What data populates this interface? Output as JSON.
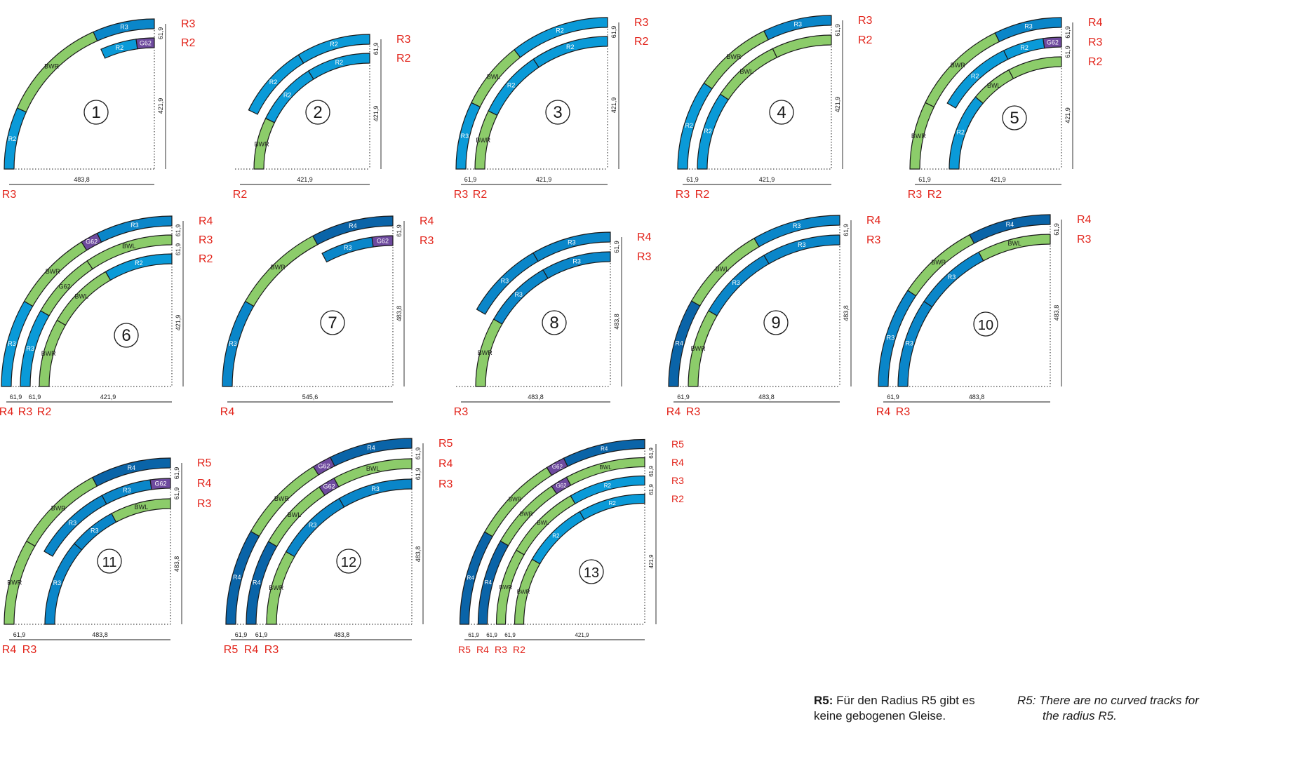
{
  "colors": {
    "R2": "#0a9ad8",
    "R3": "#0a86c9",
    "R4": "#0a64a8",
    "switch": "#8ccc6a",
    "G62": "#6e4a9e",
    "radius_label": "#e2231a",
    "outline": "#1a1a1a"
  },
  "diagrams": [
    {
      "num": "1",
      "radii": [
        "R3",
        "R2"
      ],
      "pieces": [
        {
          "lane": 0,
          "t0": 0,
          "t1": 24,
          "type": "R2",
          "label": "R2"
        },
        {
          "lane": 0,
          "t0": 24,
          "t1": 66,
          "type": "BW",
          "label": "BWR"
        },
        {
          "lane": 0,
          "t0": 66,
          "t1": 90,
          "type": "R3",
          "label": "R3"
        },
        {
          "lane": 1,
          "t0": 66,
          "t1": 82,
          "type": "R2",
          "label": "R2"
        },
        {
          "lane": 1,
          "t0": 82,
          "t1": 90,
          "type": "G62",
          "label": "G62"
        }
      ],
      "gaps": [],
      "gap_labels": [
        "61,9"
      ],
      "width_label": "483,8",
      "height_label": "421,9",
      "bottom_labels": [
        "R3"
      ]
    },
    {
      "num": "2",
      "radii": [
        "R3",
        "R2"
      ],
      "pieces": [
        {
          "lane": 1,
          "t0": 0,
          "t1": 26,
          "type": "BW",
          "label": "BWR"
        },
        {
          "lane": 0,
          "t0": 26,
          "t1": 58,
          "type": "R2",
          "label": "R2"
        },
        {
          "lane": 0,
          "t0": 58,
          "t1": 90,
          "type": "R2",
          "label": "R2"
        },
        {
          "lane": 1,
          "t0": 26,
          "t1": 58,
          "type": "R2",
          "label": "R2"
        },
        {
          "lane": 1,
          "t0": 58,
          "t1": 90,
          "type": "R2",
          "label": "R2"
        }
      ],
      "gaps": [],
      "gap_labels": [
        "61,9"
      ],
      "width_label": "421,9",
      "height_label": "421,9",
      "bottom_labels": [
        "R2"
      ]
    },
    {
      "num": "3",
      "radii": [
        "R3",
        "R2"
      ],
      "pieces": [
        {
          "lane": 0,
          "t0": 0,
          "t1": 26,
          "type": "R2",
          "label": "R3"
        },
        {
          "lane": 1,
          "t0": 0,
          "t1": 26,
          "type": "BW",
          "label": "BWR"
        },
        {
          "lane": 0,
          "t0": 26,
          "t1": 52,
          "type": "BW",
          "label": "BWL"
        },
        {
          "lane": 1,
          "t0": 26,
          "t1": 56,
          "type": "R2",
          "label": "R2"
        },
        {
          "lane": 0,
          "t0": 52,
          "t1": 90,
          "type": "R2",
          "label": "R2"
        },
        {
          "lane": 1,
          "t0": 56,
          "t1": 90,
          "type": "R2",
          "label": "R2"
        }
      ],
      "gaps": [
        "61,9"
      ],
      "gap_labels": [
        "61,9"
      ],
      "width_label": "421,9",
      "height_label": "421,9",
      "bottom_labels": [
        "R3",
        "R2"
      ]
    },
    {
      "num": "4",
      "radii": [
        "R3",
        "R2"
      ],
      "pieces": [
        {
          "lane": 0,
          "t0": 0,
          "t1": 34,
          "type": "R2",
          "label": "R2"
        },
        {
          "lane": 1,
          "t0": 0,
          "t1": 34,
          "type": "R2",
          "label": "R2"
        },
        {
          "lane": 0,
          "t0": 34,
          "t1": 64,
          "type": "BW",
          "label": "BWR"
        },
        {
          "lane": 1,
          "t0": 34,
          "t1": 64,
          "type": "BW",
          "label": "BWL"
        },
        {
          "lane": 0,
          "t0": 64,
          "t1": 90,
          "type": "R3",
          "label": "R3"
        },
        {
          "lane": 1,
          "t0": 64,
          "t1": 90,
          "type": "BW",
          "label": ""
        }
      ],
      "gaps": [
        "61,9"
      ],
      "gap_labels": [
        "61,9"
      ],
      "width_label": "421,9",
      "height_label": "421,9",
      "bottom_labels": [
        "R3",
        "R2"
      ]
    },
    {
      "num": "5",
      "radii": [
        "R4",
        "R3",
        "R2"
      ],
      "pieces": [
        {
          "lane": 0,
          "t0": 0,
          "t1": 26,
          "type": "BW",
          "label": "BWR"
        },
        {
          "lane": 0,
          "t0": 26,
          "t1": 64,
          "type": "BW",
          "label": "BWR"
        },
        {
          "lane": 0,
          "t0": 64,
          "t1": 90,
          "type": "R3",
          "label": "R3"
        },
        {
          "lane": 1,
          "t0": 30,
          "t1": 64,
          "type": "R2",
          "label": "R2"
        },
        {
          "lane": 1,
          "t0": 64,
          "t1": 82,
          "type": "R2",
          "label": "R2"
        },
        {
          "lane": 1,
          "t0": 82,
          "t1": 90,
          "type": "G62",
          "label": "G62"
        },
        {
          "lane": 2,
          "t0": 0,
          "t1": 40,
          "type": "R2",
          "label": "R2"
        },
        {
          "lane": 2,
          "t0": 40,
          "t1": 62,
          "type": "BW",
          "label": "BWL"
        },
        {
          "lane": 2,
          "t0": 62,
          "t1": 90,
          "type": "BW",
          "label": ""
        }
      ],
      "gaps": [
        "61,9"
      ],
      "gap_labels": [
        "61,9",
        "61,9"
      ],
      "width_label": "421,9",
      "height_label": "421,9",
      "bottom_labels": [
        "R3",
        "R2"
      ]
    },
    {
      "num": "6",
      "radii": [
        "R4",
        "R3",
        "R2"
      ],
      "pieces": [
        {
          "lane": 0,
          "t0": 0,
          "t1": 30,
          "type": "R2",
          "label": "R3"
        },
        {
          "lane": 0,
          "t0": 30,
          "t1": 58,
          "type": "BW",
          "label": "BWR"
        },
        {
          "lane": 0,
          "t0": 58,
          "t1": 64,
          "type": "G62",
          "label": "G62"
        },
        {
          "lane": 0,
          "t0": 64,
          "t1": 90,
          "type": "R3",
          "label": "R3"
        },
        {
          "lane": 1,
          "t0": 0,
          "t1": 30,
          "type": "R2",
          "label": "R3"
        },
        {
          "lane": 1,
          "t0": 30,
          "t1": 56,
          "type": "BW",
          "label": "G62"
        },
        {
          "lane": 1,
          "t0": 56,
          "t1": 90,
          "type": "BW",
          "label": "BWL"
        },
        {
          "lane": 2,
          "t0": 0,
          "t1": 30,
          "type": "BW",
          "label": "BWR"
        },
        {
          "lane": 2,
          "t0": 30,
          "t1": 60,
          "type": "BW",
          "label": "BWL"
        },
        {
          "lane": 2,
          "t0": 60,
          "t1": 90,
          "type": "R2",
          "label": "R2"
        }
      ],
      "gaps": [
        "61,9",
        "61,9"
      ],
      "gap_labels": [
        "61,9",
        "61,9"
      ],
      "width_label": "421,9",
      "height_label": "421,9",
      "bottom_labels": [
        "R4",
        "R3",
        "R2"
      ]
    },
    {
      "num": "7",
      "radii": [
        "R4",
        "R3"
      ],
      "pieces": [
        {
          "lane": 0,
          "t0": 0,
          "t1": 30,
          "type": "R3",
          "label": "R3"
        },
        {
          "lane": 0,
          "t0": 30,
          "t1": 62,
          "type": "BW",
          "label": "BWR R3"
        },
        {
          "lane": 0,
          "t0": 62,
          "t1": 90,
          "type": "R4",
          "label": "R4"
        },
        {
          "lane": 1,
          "t0": 62,
          "t1": 82,
          "type": "R3",
          "label": "R3"
        },
        {
          "lane": 1,
          "t0": 82,
          "t1": 90,
          "type": "G62",
          "label": "G62"
        }
      ],
      "gaps": [],
      "gap_labels": [
        "61,9"
      ],
      "width_label": "545,6",
      "height_label": "483,8",
      "bottom_labels": [
        "R4"
      ]
    },
    {
      "num": "8",
      "radii": [
        "R4",
        "R3"
      ],
      "pieces": [
        {
          "lane": 1,
          "t0": 0,
          "t1": 30,
          "type": "BW",
          "label": "BWR R3"
        },
        {
          "lane": 0,
          "t0": 30,
          "t1": 60,
          "type": "R3",
          "label": "R3"
        },
        {
          "lane": 0,
          "t0": 60,
          "t1": 90,
          "type": "R3",
          "label": "R3"
        },
        {
          "lane": 1,
          "t0": 30,
          "t1": 60,
          "type": "R3",
          "label": "R3"
        },
        {
          "lane": 1,
          "t0": 60,
          "t1": 90,
          "type": "R3",
          "label": "R3"
        }
      ],
      "gaps": [],
      "gap_labels": [
        "61,9"
      ],
      "width_label": "483,8",
      "height_label": "483,8",
      "bottom_labels": [
        "R3"
      ]
    },
    {
      "num": "9",
      "radii": [
        "R4",
        "R3"
      ],
      "pieces": [
        {
          "lane": 0,
          "t0": 0,
          "t1": 30,
          "type": "R4",
          "label": "R4"
        },
        {
          "lane": 1,
          "t0": 0,
          "t1": 30,
          "type": "BW",
          "label": "BWR R3"
        },
        {
          "lane": 0,
          "t0": 30,
          "t1": 60,
          "type": "BW",
          "label": "BWL R3"
        },
        {
          "lane": 1,
          "t0": 30,
          "t1": 60,
          "type": "R3",
          "label": "R3"
        },
        {
          "lane": 0,
          "t0": 60,
          "t1": 90,
          "type": "R3",
          "label": "R3"
        },
        {
          "lane": 1,
          "t0": 60,
          "t1": 90,
          "type": "R3",
          "label": "R3"
        }
      ],
      "gaps": [
        "61,9"
      ],
      "gap_labels": [
        "61,9"
      ],
      "width_label": "483,8",
      "height_label": "483,8",
      "bottom_labels": [
        "R4",
        "R3"
      ]
    },
    {
      "num": "10",
      "radii": [
        "R4",
        "R3"
      ],
      "pieces": [
        {
          "lane": 0,
          "t0": 0,
          "t1": 34,
          "type": "R3",
          "label": "R3"
        },
        {
          "lane": 1,
          "t0": 0,
          "t1": 34,
          "type": "R3",
          "label": "R3"
        },
        {
          "lane": 0,
          "t0": 34,
          "t1": 62,
          "type": "BW",
          "label": "BWR R3"
        },
        {
          "lane": 1,
          "t0": 34,
          "t1": 62,
          "type": "R3",
          "label": "R3"
        },
        {
          "lane": 0,
          "t0": 62,
          "t1": 90,
          "type": "R4",
          "label": "R4"
        },
        {
          "lane": 1,
          "t0": 62,
          "t1": 90,
          "type": "BW",
          "label": "BWL R3"
        }
      ],
      "gaps": [
        "61,9"
      ],
      "gap_labels": [
        "61,9"
      ],
      "width_label": "483,8",
      "height_label": "483,8",
      "bottom_labels": [
        "R4",
        "R3"
      ]
    },
    {
      "num": "11",
      "radii": [
        "R5",
        "R4",
        "R3"
      ],
      "pieces": [
        {
          "lane": 0,
          "t0": 0,
          "t1": 30,
          "type": "BW",
          "label": "BWR R3"
        },
        {
          "lane": 0,
          "t0": 30,
          "t1": 62,
          "type": "BW",
          "label": "BWR R3"
        },
        {
          "lane": 0,
          "t0": 62,
          "t1": 90,
          "type": "R4",
          "label": "R4"
        },
        {
          "lane": 1,
          "t0": 30,
          "t1": 62,
          "type": "R3",
          "label": "R3"
        },
        {
          "lane": 1,
          "t0": 62,
          "t1": 82,
          "type": "R3",
          "label": "R3"
        },
        {
          "lane": 1,
          "t0": 82,
          "t1": 90,
          "type": "G62",
          "label": "G62"
        },
        {
          "lane": 2,
          "t0": 0,
          "t1": 40,
          "type": "R3",
          "label": "R3"
        },
        {
          "lane": 2,
          "t0": 40,
          "t1": 62,
          "type": "R3",
          "label": "R3"
        },
        {
          "lane": 2,
          "t0": 62,
          "t1": 90,
          "type": "BW",
          "label": "BWL R3"
        }
      ],
      "gaps": [
        "61,9"
      ],
      "gap_labels": [
        "61,9",
        "61,9"
      ],
      "width_label": "483,8",
      "height_label": "483,8",
      "bottom_labels": [
        "R4",
        "R3"
      ]
    },
    {
      "num": "12",
      "radii": [
        "R5",
        "R4",
        "R3"
      ],
      "pieces": [
        {
          "lane": 0,
          "t0": 0,
          "t1": 30,
          "type": "R4",
          "label": "R4"
        },
        {
          "lane": 0,
          "t0": 30,
          "t1": 58,
          "type": "BW",
          "label": "BWR R3"
        },
        {
          "lane": 0,
          "t0": 58,
          "t1": 64,
          "type": "G62",
          "label": "G62"
        },
        {
          "lane": 0,
          "t0": 64,
          "t1": 90,
          "type": "R4",
          "label": "R4"
        },
        {
          "lane": 1,
          "t0": 0,
          "t1": 30,
          "type": "R4",
          "label": "R4"
        },
        {
          "lane": 1,
          "t0": 30,
          "t1": 56,
          "type": "BW",
          "label": "BWL R3"
        },
        {
          "lane": 1,
          "t0": 56,
          "t1": 62,
          "type": "G62",
          "label": "G62"
        },
        {
          "lane": 1,
          "t0": 62,
          "t1": 90,
          "type": "BW",
          "label": "BWL R3"
        },
        {
          "lane": 2,
          "t0": 0,
          "t1": 30,
          "type": "BW",
          "label": "BWR R3"
        },
        {
          "lane": 2,
          "t0": 30,
          "t1": 60,
          "type": "R3",
          "label": "R3"
        },
        {
          "lane": 2,
          "t0": 60,
          "t1": 90,
          "type": "R3",
          "label": "R3"
        }
      ],
      "gaps": [
        "61,9",
        "61,9"
      ],
      "gap_labels": [
        "61,9",
        "61,9"
      ],
      "width_label": "483,8",
      "height_label": "483,8",
      "bottom_labels": [
        "R5",
        "R4",
        "R3"
      ]
    },
    {
      "num": "13",
      "radii": [
        "R5",
        "R4",
        "R3",
        "R2"
      ],
      "pieces": [
        {
          "lane": 0,
          "t0": 0,
          "t1": 30,
          "type": "R4",
          "label": "R4"
        },
        {
          "lane": 0,
          "t0": 30,
          "t1": 58,
          "type": "BW",
          "label": "BWR R3"
        },
        {
          "lane": 0,
          "t0": 58,
          "t1": 64,
          "type": "G62",
          "label": "G62"
        },
        {
          "lane": 0,
          "t0": 64,
          "t1": 90,
          "type": "R4",
          "label": "R4"
        },
        {
          "lane": 1,
          "t0": 0,
          "t1": 30,
          "type": "R4",
          "label": "R4"
        },
        {
          "lane": 1,
          "t0": 30,
          "t1": 56,
          "type": "BW",
          "label": "BWR R3"
        },
        {
          "lane": 1,
          "t0": 56,
          "t1": 62,
          "type": "G62",
          "label": "G62"
        },
        {
          "lane": 1,
          "t0": 62,
          "t1": 90,
          "type": "BW",
          "label": "BWL R3"
        },
        {
          "lane": 2,
          "t0": 0,
          "t1": 30,
          "type": "BW",
          "label": "BWR R3"
        },
        {
          "lane": 2,
          "t0": 30,
          "t1": 60,
          "type": "BW",
          "label": "BWL"
        },
        {
          "lane": 2,
          "t0": 60,
          "t1": 90,
          "type": "R2",
          "label": "R2"
        },
        {
          "lane": 3,
          "t0": 0,
          "t1": 30,
          "type": "BW",
          "label": "BWR"
        },
        {
          "lane": 3,
          "t0": 30,
          "t1": 60,
          "type": "R2",
          "label": "R2"
        },
        {
          "lane": 3,
          "t0": 60,
          "t1": 90,
          "type": "R2",
          "label": "R2"
        }
      ],
      "gaps": [
        "61,9",
        "61,9",
        "61,9"
      ],
      "gap_labels": [
        "61,9",
        "61,9",
        "61,9"
      ],
      "width_label": "421,9",
      "height_label": "421,9",
      "bottom_labels": [
        "R5",
        "R4",
        "R3",
        "R2"
      ]
    }
  ],
  "notes": {
    "de_bold": "R5:",
    "de_text": " Für den Radius R5 gibt es keine gebogenen Gleise.",
    "en_line1": "R5: There are no curved tracks for",
    "en_line2": "the radius R5."
  }
}
